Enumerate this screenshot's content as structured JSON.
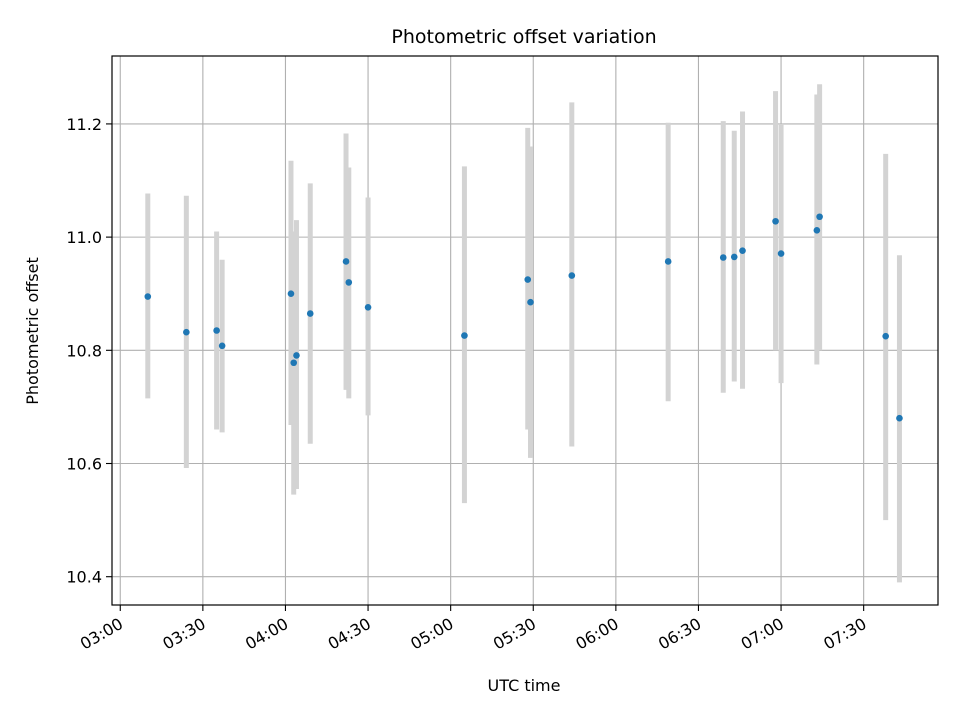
{
  "chart_data": {
    "type": "scatter",
    "title": "Photometric offset variation",
    "xlabel": "UTC time",
    "ylabel": "Photometric offset",
    "x_ticks": [
      "03:00",
      "03:30",
      "04:00",
      "04:30",
      "05:00",
      "05:30",
      "06:00",
      "06:30",
      "07:00",
      "07:30"
    ],
    "y_ticks": [
      "10.4",
      "10.6",
      "10.8",
      "11.0",
      "11.2"
    ],
    "xlim": [
      "02:57",
      "07:57"
    ],
    "ylim": [
      10.35,
      11.32
    ],
    "grid": true,
    "error_bar_color": "#d3d3d3",
    "point_color": "#1f77b4",
    "points": [
      {
        "x": "03:10",
        "y": 10.895,
        "lo": 10.715,
        "hi": 11.077
      },
      {
        "x": "03:24",
        "y": 10.832,
        "lo": 10.592,
        "hi": 11.073
      },
      {
        "x": "03:35",
        "y": 10.835,
        "lo": 10.66,
        "hi": 11.01
      },
      {
        "x": "03:37",
        "y": 10.808,
        "lo": 10.655,
        "hi": 10.96
      },
      {
        "x": "04:02",
        "y": 10.9,
        "lo": 10.668,
        "hi": 11.135
      },
      {
        "x": "04:03",
        "y": 10.778,
        "lo": 10.545,
        "hi": 11.01
      },
      {
        "x": "04:04",
        "y": 10.791,
        "lo": 10.555,
        "hi": 11.03
      },
      {
        "x": "04:09",
        "y": 10.865,
        "lo": 10.635,
        "hi": 11.095
      },
      {
        "x": "04:22",
        "y": 10.957,
        "lo": 10.73,
        "hi": 11.183
      },
      {
        "x": "04:23",
        "y": 10.92,
        "lo": 10.715,
        "hi": 11.123
      },
      {
        "x": "04:30",
        "y": 10.876,
        "lo": 10.685,
        "hi": 11.07
      },
      {
        "x": "05:05",
        "y": 10.826,
        "lo": 10.53,
        "hi": 11.125
      },
      {
        "x": "05:28",
        "y": 10.925,
        "lo": 10.66,
        "hi": 11.193
      },
      {
        "x": "05:29",
        "y": 10.885,
        "lo": 10.61,
        "hi": 11.16
      },
      {
        "x": "05:44",
        "y": 10.932,
        "lo": 10.63,
        "hi": 11.238
      },
      {
        "x": "06:19",
        "y": 10.957,
        "lo": 10.71,
        "hi": 11.202
      },
      {
        "x": "06:39",
        "y": 10.964,
        "lo": 10.725,
        "hi": 11.205
      },
      {
        "x": "06:43",
        "y": 10.965,
        "lo": 10.745,
        "hi": 11.188
      },
      {
        "x": "06:46",
        "y": 10.976,
        "lo": 10.732,
        "hi": 11.222
      },
      {
        "x": "06:58",
        "y": 11.028,
        "lo": 10.8,
        "hi": 11.258
      },
      {
        "x": "07:00",
        "y": 10.971,
        "lo": 10.742,
        "hi": 11.2
      },
      {
        "x": "07:13",
        "y": 11.012,
        "lo": 10.775,
        "hi": 11.252
      },
      {
        "x": "07:14",
        "y": 11.036,
        "lo": 10.8,
        "hi": 11.27
      },
      {
        "x": "07:38",
        "y": 10.825,
        "lo": 10.5,
        "hi": 11.147
      },
      {
        "x": "07:43",
        "y": 10.68,
        "lo": 10.39,
        "hi": 10.968
      }
    ]
  }
}
